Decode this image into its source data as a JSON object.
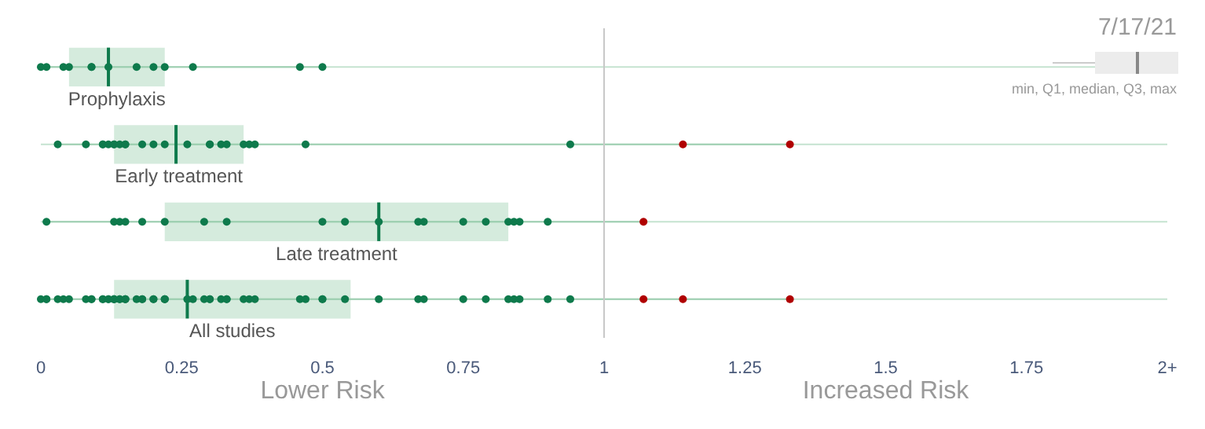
{
  "chart_data": {
    "type": "box",
    "orientation": "horizontal",
    "categories": [
      "Prophylaxis",
      "Early treatment",
      "Late treatment",
      "All studies"
    ],
    "boxes": [
      {
        "low": 0,
        "q1": 0.05,
        "median": 0.12,
        "q3": 0.22,
        "high": 0.5
      },
      {
        "low": 0.03,
        "q1": 0.13,
        "median": 0.24,
        "q3": 0.36,
        "high": 1.33
      },
      {
        "low": 0.01,
        "q1": 0.22,
        "median": 0.6,
        "q3": 0.83,
        "high": 1.07
      },
      {
        "low": 0,
        "q1": 0.13,
        "median": 0.26,
        "q3": 0.55,
        "high": 1.33
      }
    ],
    "series": [
      {
        "type": "scatter",
        "color": "#0e7a4c",
        "x": [
          "Prophylaxis",
          "Prophylaxis",
          "Prophylaxis",
          "Prophylaxis",
          "Prophylaxis",
          "Prophylaxis",
          "Prophylaxis",
          "Prophylaxis",
          "Prophylaxis",
          "Prophylaxis",
          "Prophylaxis",
          "Prophylaxis",
          "Prophylaxis",
          "Early treatment",
          "Early treatment",
          "Early treatment",
          "Early treatment",
          "Early treatment",
          "Early treatment",
          "Early treatment",
          "Early treatment",
          "Early treatment",
          "Early treatment",
          "Early treatment",
          "Early treatment",
          "Early treatment",
          "Early treatment",
          "Early treatment",
          "Early treatment",
          "Early treatment",
          "Early treatment",
          "Early treatment",
          "Early treatment",
          "Early treatment",
          "Early treatment",
          "Early treatment",
          "Late treatment",
          "Late treatment",
          "Late treatment",
          "Late treatment",
          "Late treatment",
          "Late treatment",
          "Late treatment",
          "Late treatment",
          "Late treatment",
          "Late treatment",
          "Late treatment",
          "Late treatment",
          "Late treatment",
          "Late treatment",
          "Late treatment",
          "Late treatment",
          "Late treatment",
          "Late treatment",
          "Late treatment",
          "All studies",
          "All studies",
          "All studies",
          "All studies",
          "All studies",
          "All studies",
          "All studies",
          "All studies",
          "All studies",
          "All studies",
          "All studies",
          "All studies",
          "All studies",
          "All studies",
          "All studies",
          "All studies",
          "All studies",
          "All studies",
          "All studies",
          "All studies",
          "All studies",
          "All studies",
          "All studies",
          "All studies",
          "All studies",
          "All studies",
          "All studies",
          "All studies",
          "All studies",
          "All studies",
          "All studies",
          "All studies",
          "All studies",
          "All studies",
          "All studies",
          "All studies",
          "All studies",
          "All studies",
          "All studies",
          "All studies",
          "All studies",
          "All studies",
          "All studies",
          "All studies",
          "All studies",
          "All studies",
          "All studies",
          "All studies",
          "All studies",
          "All studies",
          "All studies",
          "All studies",
          "All studies",
          "All studies",
          "All studies"
        ],
        "values": [
          0,
          0.01,
          0.04,
          0.05,
          0.09,
          0.09,
          0.12,
          0.17,
          0.2,
          0.22,
          0.27,
          0.46,
          0.5,
          0.03,
          0.08,
          0.11,
          0.11,
          0.12,
          0.13,
          0.13,
          0.14,
          0.15,
          0.15,
          0.18,
          0.2,
          0.22,
          0.26,
          0.3,
          0.3,
          0.32,
          0.33,
          0.36,
          0.37,
          0.38,
          0.47,
          0.94,
          0.01,
          0.13,
          0.14,
          0.15,
          0.18,
          0.22,
          0.29,
          0.33,
          0.5,
          0.54,
          0.6,
          0.67,
          0.68,
          0.75,
          0.79,
          0.83,
          0.84,
          0.85,
          0.9,
          0,
          0.01,
          0.04,
          0.05,
          0.09,
          0.09,
          0.12,
          0.17,
          0.2,
          0.22,
          0.27,
          0.46,
          0.5,
          0.03,
          0.08,
          0.11,
          0.11,
          0.12,
          0.13,
          0.13,
          0.14,
          0.15,
          0.15,
          0.18,
          0.2,
          0.22,
          0.26,
          0.3,
          0.3,
          0.32,
          0.33,
          0.36,
          0.37,
          0.38,
          0.47,
          0.94,
          0.01,
          0.13,
          0.14,
          0.15,
          0.18,
          0.22,
          0.29,
          0.33,
          0.5,
          0.54,
          0.6,
          0.67,
          0.68,
          0.75,
          0.79,
          0.83,
          0.84,
          0.85,
          0.9
        ]
      },
      {
        "type": "scatter",
        "color": "#b00000",
        "x": [
          "Early treatment",
          "Early treatment",
          "Late treatment",
          "All studies",
          "All studies",
          "All studies"
        ],
        "values": [
          1.14,
          1.33,
          1.07,
          1.07,
          1.14,
          1.33
        ]
      }
    ],
    "xlim": [
      0,
      2
    ],
    "xticks": [
      0,
      0.25,
      0.5,
      0.75,
      1,
      1.25,
      1.5,
      1.75,
      {
        "value": 2,
        "label": "2+"
      }
    ],
    "ref_lines": [
      {
        "axis": "x",
        "value": 1,
        "color": "#c8c8c8"
      }
    ],
    "grid": "y",
    "marker": "circle",
    "annotations": [
      "Lower Risk",
      "Increased Risk",
      "7/17/21",
      "min, Q1, median, Q3, max"
    ]
  }
}
